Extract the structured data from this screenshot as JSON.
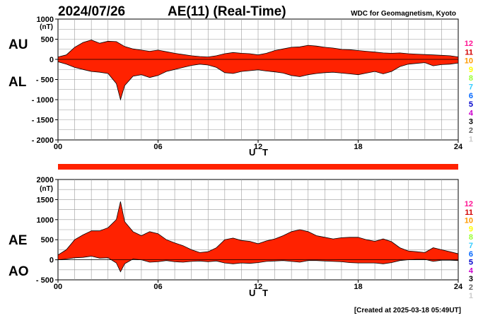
{
  "header": {
    "date": "2024/07/26",
    "title": "AE(11) (Real-Time)",
    "source": "WDC for Geomagnetism, Kyoto"
  },
  "footer": {
    "created": "[Created at 2025-03-18 05:49UT]"
  },
  "level_scale": {
    "labels": [
      "12",
      "11",
      "10",
      "9",
      "8",
      "7",
      "6",
      "5",
      "4",
      "3",
      "2",
      "1"
    ],
    "colors": [
      "#ff1493",
      "#d40000",
      "#ff9900",
      "#ffff00",
      "#99ff33",
      "#33ccff",
      "#0066ff",
      "#0000cc",
      "#cc00cc",
      "#000000",
      "#666666",
      "#cccccc"
    ]
  },
  "chart_data": [
    {
      "type": "area",
      "series_labels": [
        "AU",
        "AL"
      ],
      "unit": "(nT)",
      "xlabel": "U T",
      "xlim": [
        0,
        24
      ],
      "ylim": [
        -2000,
        1000
      ],
      "xticks": [
        {
          "v": 0,
          "label": "00"
        },
        {
          "v": 6,
          "label": "06"
        },
        {
          "v": 12,
          "label": "12"
        },
        {
          "v": 18,
          "label": "18"
        },
        {
          "v": 24,
          "label": "24"
        }
      ],
      "yticks": [
        {
          "v": 1000,
          "label": "1000"
        },
        {
          "v": 500,
          "label": "500"
        },
        {
          "v": 0,
          "label": "0"
        },
        {
          "v": -500,
          "label": "- 500"
        },
        {
          "v": -1000,
          "label": "- 1000"
        },
        {
          "v": -1500,
          "label": "- 1500"
        },
        {
          "v": -2000,
          "label": "- 2000"
        }
      ],
      "grid": true,
      "fill_color": "#ff2200",
      "upper": {
        "name": "AU",
        "x": [
          0,
          0.5,
          1,
          1.5,
          2,
          2.5,
          3,
          3.5,
          4,
          4.5,
          5,
          5.5,
          6,
          6.5,
          7,
          7.5,
          8,
          8.5,
          9,
          9.5,
          10,
          10.5,
          11,
          11.5,
          12,
          12.5,
          13,
          13.5,
          14,
          14.5,
          15,
          15.5,
          16,
          16.5,
          17,
          17.5,
          18,
          18.5,
          19,
          19.5,
          20,
          20.5,
          21,
          21.5,
          22,
          22.5,
          23,
          23.5,
          24
        ],
        "y": [
          60,
          110,
          300,
          420,
          480,
          400,
          450,
          440,
          320,
          260,
          230,
          200,
          230,
          190,
          150,
          120,
          90,
          70,
          60,
          90,
          140,
          170,
          150,
          140,
          110,
          150,
          220,
          260,
          300,
          310,
          350,
          330,
          300,
          280,
          250,
          240,
          220,
          200,
          180,
          160,
          150,
          160,
          140,
          130,
          120,
          110,
          100,
          90,
          60
        ]
      },
      "lower": {
        "name": "AL",
        "x": [
          0,
          0.5,
          1,
          1.5,
          2,
          2.5,
          3,
          3.5,
          3.75,
          4,
          4.5,
          5,
          5.5,
          6,
          6.5,
          7,
          7.5,
          8,
          8.5,
          9,
          9.5,
          10,
          10.5,
          11,
          11.5,
          12,
          12.5,
          13,
          13.5,
          14,
          14.5,
          15,
          15.5,
          16,
          16.5,
          17,
          17.5,
          18,
          18.5,
          19,
          19.5,
          20,
          20.5,
          21,
          21.5,
          22,
          22.5,
          23,
          23.5,
          24
        ],
        "y": [
          -60,
          -120,
          -200,
          -250,
          -300,
          -320,
          -350,
          -600,
          -1000,
          -650,
          -420,
          -380,
          -450,
          -400,
          -300,
          -250,
          -200,
          -150,
          -120,
          -140,
          -200,
          -330,
          -350,
          -300,
          -280,
          -260,
          -290,
          -310,
          -340,
          -400,
          -430,
          -380,
          -350,
          -330,
          -320,
          -340,
          -360,
          -380,
          -340,
          -300,
          -360,
          -300,
          -180,
          -120,
          -100,
          -80,
          -160,
          -130,
          -120,
          -90
        ]
      }
    },
    {
      "type": "area",
      "series_labels": [
        "AE",
        "AO"
      ],
      "unit": "(nT)",
      "xlabel": "U T",
      "xlim": [
        0,
        24
      ],
      "ylim": [
        -500,
        2000
      ],
      "xticks": [
        {
          "v": 0,
          "label": "00"
        },
        {
          "v": 6,
          "label": "06"
        },
        {
          "v": 12,
          "label": "12"
        },
        {
          "v": 18,
          "label": "18"
        },
        {
          "v": 24,
          "label": "24"
        }
      ],
      "yticks": [
        {
          "v": 2000,
          "label": "2000"
        },
        {
          "v": 1500,
          "label": "1500"
        },
        {
          "v": 1000,
          "label": "1000"
        },
        {
          "v": 500,
          "label": "500"
        },
        {
          "v": 0,
          "label": "0"
        },
        {
          "v": -500,
          "label": "- 500"
        }
      ],
      "grid": true,
      "fill_color": "#ff2200",
      "upper": {
        "name": "AE",
        "x": [
          0,
          0.5,
          1,
          1.5,
          2,
          2.5,
          3,
          3.5,
          3.75,
          4,
          4.5,
          5,
          5.5,
          6,
          6.5,
          7,
          7.5,
          8,
          8.5,
          9,
          9.5,
          10,
          10.5,
          11,
          11.5,
          12,
          12.5,
          13,
          13.5,
          14,
          14.5,
          15,
          15.5,
          16,
          16.5,
          17,
          17.5,
          18,
          18.5,
          19,
          19.5,
          20,
          20.5,
          21,
          21.5,
          22,
          22.5,
          23,
          23.5,
          24
        ],
        "y": [
          120,
          250,
          500,
          620,
          720,
          720,
          800,
          1000,
          1450,
          950,
          700,
          600,
          700,
          650,
          500,
          420,
          350,
          250,
          180,
          200,
          300,
          500,
          540,
          480,
          460,
          400,
          470,
          520,
          600,
          700,
          750,
          700,
          600,
          560,
          520,
          550,
          560,
          560,
          500,
          460,
          520,
          450,
          300,
          220,
          200,
          180,
          300,
          250,
          200,
          150
        ]
      },
      "lower": {
        "name": "AO",
        "x": [
          0,
          0.5,
          1,
          1.5,
          2,
          2.5,
          3,
          3.5,
          3.75,
          4,
          4.5,
          5,
          5.5,
          6,
          6.5,
          7,
          7.5,
          8,
          8.5,
          9,
          9.5,
          10,
          10.5,
          11,
          11.5,
          12,
          12.5,
          13,
          13.5,
          14,
          14.5,
          15,
          15.5,
          16,
          16.5,
          17,
          17.5,
          18,
          18.5,
          19,
          19.5,
          20,
          20.5,
          21,
          21.5,
          22,
          22.5,
          23,
          23.5,
          24
        ],
        "y": [
          0,
          20,
          50,
          60,
          90,
          40,
          50,
          -80,
          -300,
          -100,
          20,
          0,
          -60,
          -50,
          -20,
          -50,
          -60,
          -40,
          -30,
          -50,
          -30,
          -80,
          -100,
          -80,
          -90,
          -70,
          -40,
          -30,
          -20,
          -40,
          -60,
          -20,
          -20,
          -30,
          -40,
          -50,
          -70,
          -80,
          -80,
          -80,
          -100,
          -70,
          -20,
          0,
          10,
          10,
          -40,
          -10,
          -10,
          -20
        ]
      }
    }
  ]
}
